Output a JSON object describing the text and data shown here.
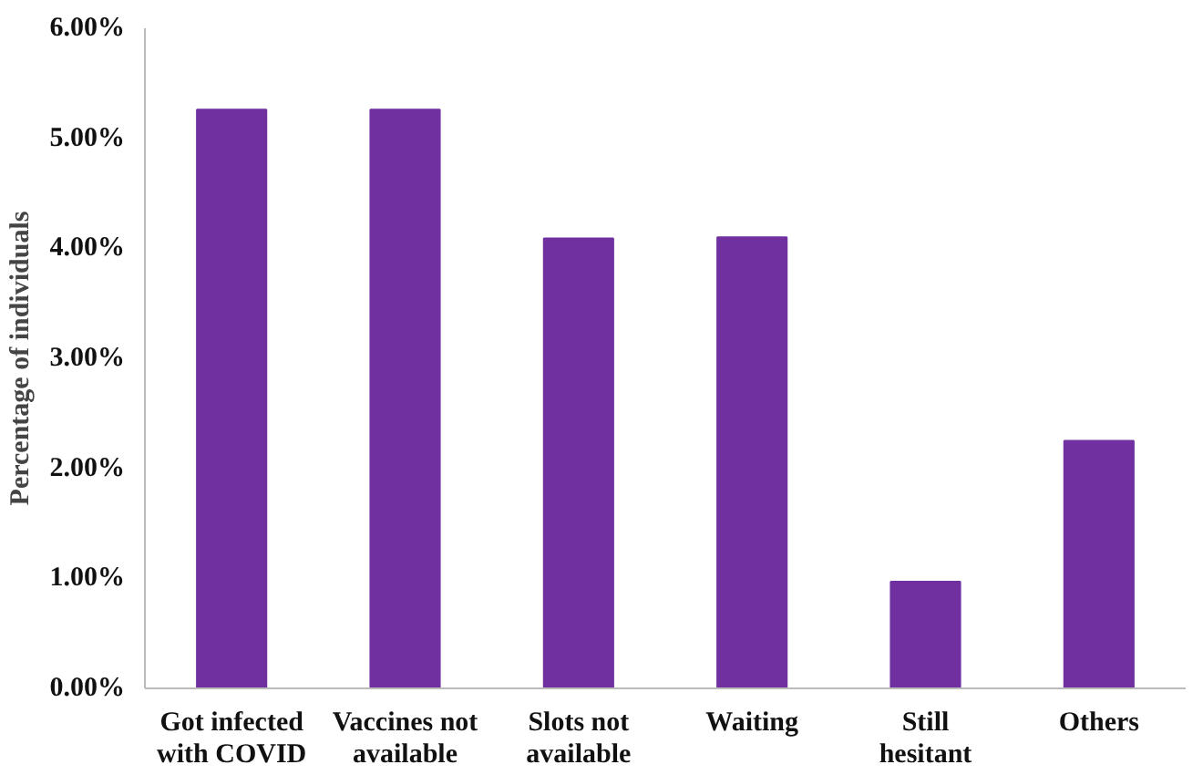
{
  "chart_data": {
    "type": "bar",
    "ylabel": "Percentage of individuals",
    "categories": [
      "Got infected with COVID",
      "Vaccines not available",
      "Slots not available",
      "Waiting",
      "Still hesitant",
      "Others"
    ],
    "values": [
      5.26,
      5.26,
      4.09,
      4.1,
      0.97,
      2.25
    ],
    "color": "#7030a0",
    "ylim": [
      0,
      6
    ],
    "yticks": [
      {
        "value": 0,
        "label": "0.00%"
      },
      {
        "value": 1,
        "label": "1.00%"
      },
      {
        "value": 2,
        "label": "2.00%"
      },
      {
        "value": 3,
        "label": "3.00%"
      },
      {
        "value": 4,
        "label": "4.00%"
      },
      {
        "value": 5,
        "label": "5.00%"
      },
      {
        "value": 6,
        "label": "6.00%"
      }
    ],
    "grid": false
  }
}
